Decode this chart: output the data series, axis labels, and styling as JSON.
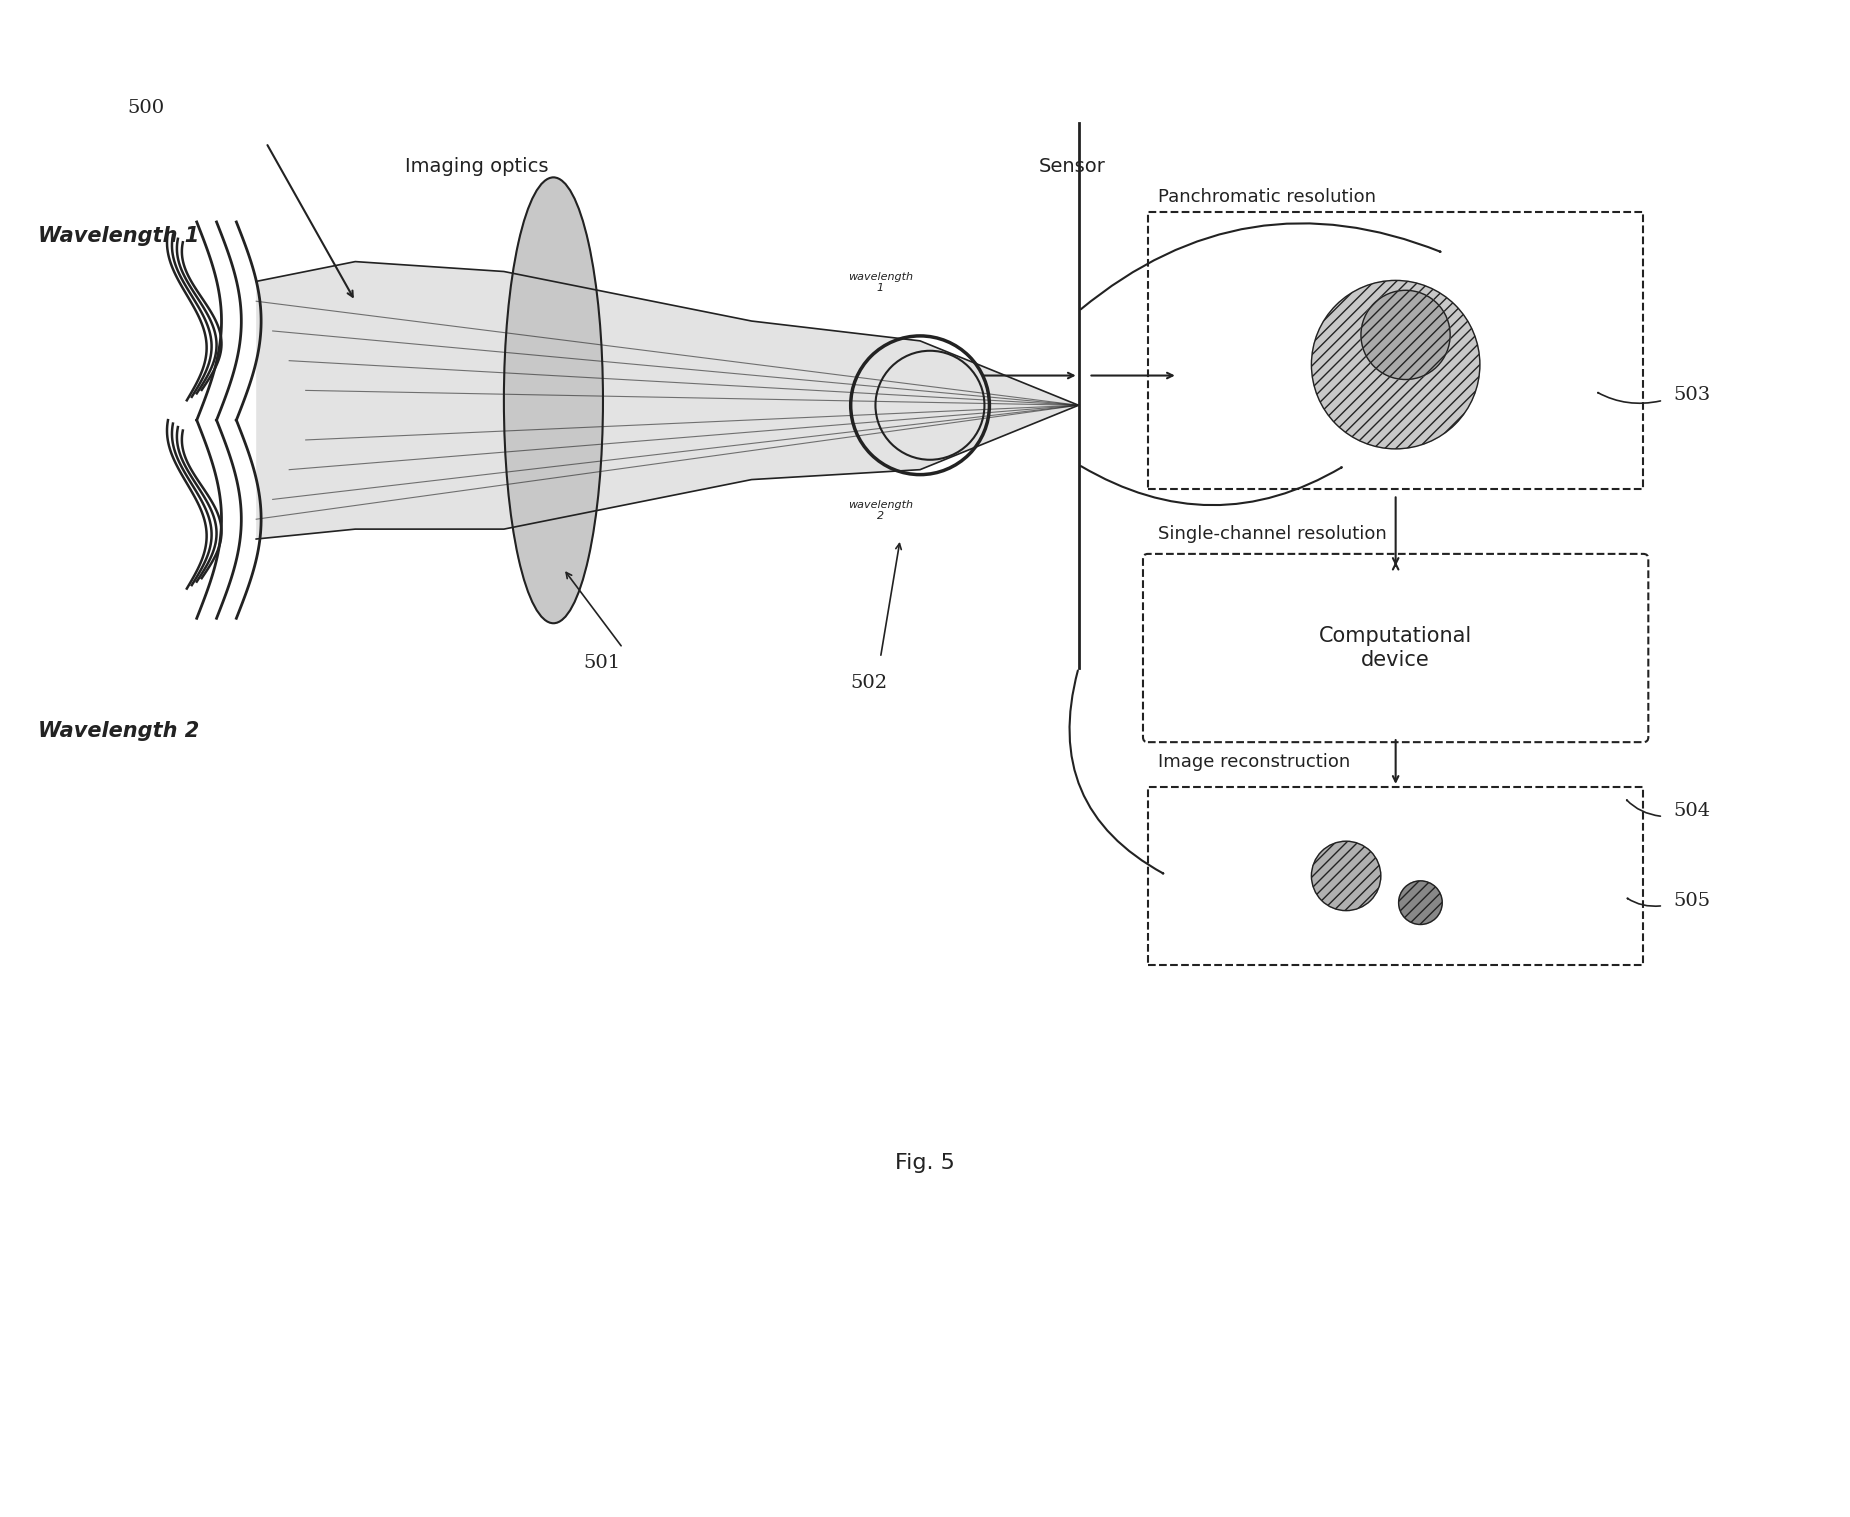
{
  "bg_color": "#ffffff",
  "fig_label": "Fig. 5",
  "label_500": "500",
  "label_501": "501",
  "label_502": "502",
  "label_503": "503",
  "label_504": "504",
  "label_505": "505",
  "text_wavelength1": "Wavelength 1",
  "text_wavelength2": "Wavelength 2",
  "text_imaging_optics": "Imaging optics",
  "text_sensor": "Sensor",
  "text_panchromatic": "Panchromatic resolution",
  "text_single_channel": "Single-channel resolution",
  "text_computational": "Computational\ndevice",
  "text_image_reconstruction": "Image reconstruction",
  "line_color": "#222222",
  "box_color": "#333333",
  "shading_color": "#cccccc",
  "arrow_color": "#333333"
}
